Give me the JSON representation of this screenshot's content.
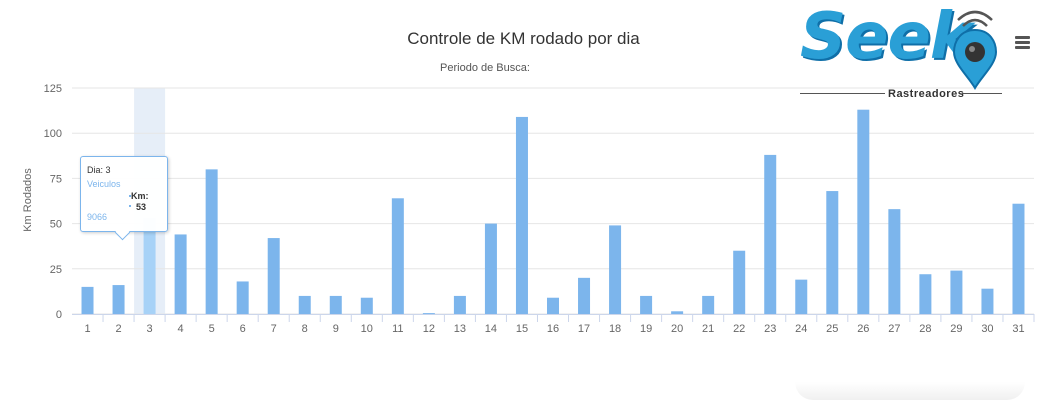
{
  "chart_data": {
    "type": "bar",
    "title": "Controle de KM rodado por dia",
    "subtitle": "Periodo de Busca:",
    "ylabel": "Km Rodados",
    "xlabel": "",
    "ylim": [
      0,
      125
    ],
    "yticks": [
      "0",
      "25",
      "50",
      "75",
      "100",
      "125"
    ],
    "grid": true,
    "legend": "none",
    "categories": [
      "1",
      "2",
      "3",
      "4",
      "5",
      "6",
      "7",
      "8",
      "9",
      "10",
      "11",
      "12",
      "13",
      "14",
      "15",
      "16",
      "17",
      "18",
      "19",
      "20",
      "21",
      "22",
      "23",
      "24",
      "25",
      "26",
      "27",
      "28",
      "29",
      "30",
      "31"
    ],
    "values": [
      15,
      16,
      53,
      44,
      80,
      18,
      42,
      10,
      10,
      9,
      64,
      0.5,
      10,
      50,
      109,
      9,
      20,
      49,
      10,
      1.5,
      10,
      35,
      88,
      19,
      68,
      113,
      58,
      22,
      24,
      14,
      61
    ],
    "highlighted_index": 2,
    "colors": {
      "bar": "#7cb5ec",
      "bar_hover": "#a7d2f7",
      "hover_band": "#e6eef8",
      "grid": "#e6e6e6"
    }
  },
  "tooltip": {
    "day_label": "Dia: 3",
    "vehicle_label": "Veiculos",
    "km_label": "Km:",
    "km_value": "53",
    "vehicle_id": "9066"
  },
  "logo": {
    "brand": "Seek",
    "tagline": "Rastreadores",
    "color": "#2a9fd6"
  },
  "menu": {
    "icon": "hamburger-icon"
  }
}
